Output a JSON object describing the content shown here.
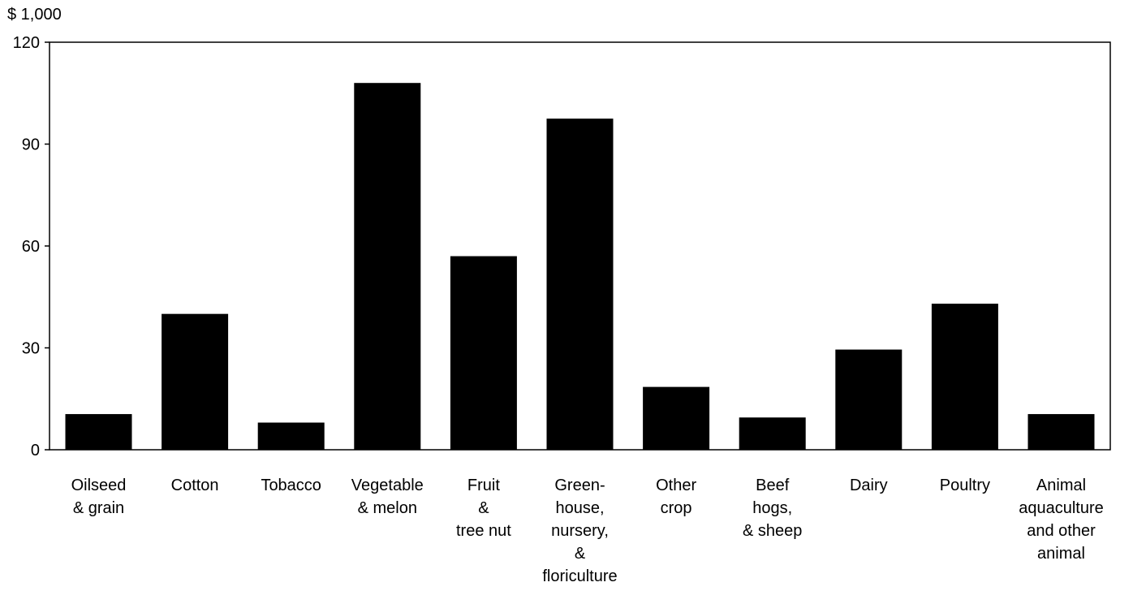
{
  "chart_data": {
    "type": "bar",
    "title": "",
    "xlabel": "",
    "ylabel": "$ 1,000",
    "ylim": [
      0,
      120
    ],
    "yticks": [
      0,
      30,
      60,
      90,
      120
    ],
    "grid": false,
    "legend": "none",
    "bar_color": "#000000",
    "categories": [
      [
        "Oilseed",
        "& grain"
      ],
      [
        "Cotton"
      ],
      [
        "Tobacco"
      ],
      [
        "Vegetable",
        "& melon"
      ],
      [
        "Fruit",
        "&",
        "tree nut"
      ],
      [
        "Green-",
        "house,",
        "nursery,",
        "&",
        "floriculture"
      ],
      [
        "Other",
        "crop"
      ],
      [
        "Beef",
        "hogs,",
        "& sheep"
      ],
      [
        "Dairy"
      ],
      [
        "Poultry"
      ],
      [
        "Animal",
        "aquaculture",
        "and other",
        "animal"
      ]
    ],
    "values": [
      10.5,
      40,
      8,
      108,
      57,
      97.5,
      18.5,
      9.5,
      29.5,
      43,
      10.5
    ]
  }
}
